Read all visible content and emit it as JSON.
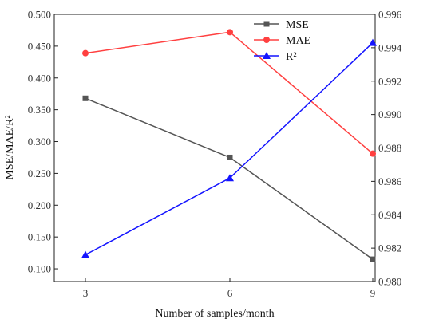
{
  "chart_data": {
    "type": "line",
    "xlabel": "Number of samples/month",
    "ylabel": "MSE/MAE/R²",
    "categories": [
      "3",
      "6",
      "9"
    ],
    "x": [
      3,
      6,
      9
    ],
    "xticks": [
      "3",
      "6",
      "9"
    ],
    "ylim": [
      0.08,
      0.5
    ],
    "yticks": [
      "0.100",
      "0.150",
      "0.200",
      "0.250",
      "0.300",
      "0.350",
      "0.400",
      "0.450",
      "0.500"
    ],
    "y2lim": [
      0.98,
      0.996
    ],
    "y2ticks": [
      "0.980",
      "0.982",
      "0.984",
      "0.986",
      "0.988",
      "0.990",
      "0.992",
      "0.994",
      "0.996"
    ],
    "grid": false,
    "legend": "top-right",
    "series": [
      {
        "name": "MSE",
        "axis": "left",
        "values": [
          0.368,
          0.275,
          0.115
        ],
        "color": "#555555",
        "marker": "square"
      },
      {
        "name": "MAE",
        "axis": "left",
        "values": [
          0.439,
          0.472,
          0.281
        ],
        "color": "#ff4040",
        "marker": "circle"
      },
      {
        "name": "R²",
        "axis": "right",
        "values": [
          0.9816,
          0.9862,
          0.9943
        ],
        "color": "#1414ff",
        "marker": "triangle"
      }
    ]
  }
}
